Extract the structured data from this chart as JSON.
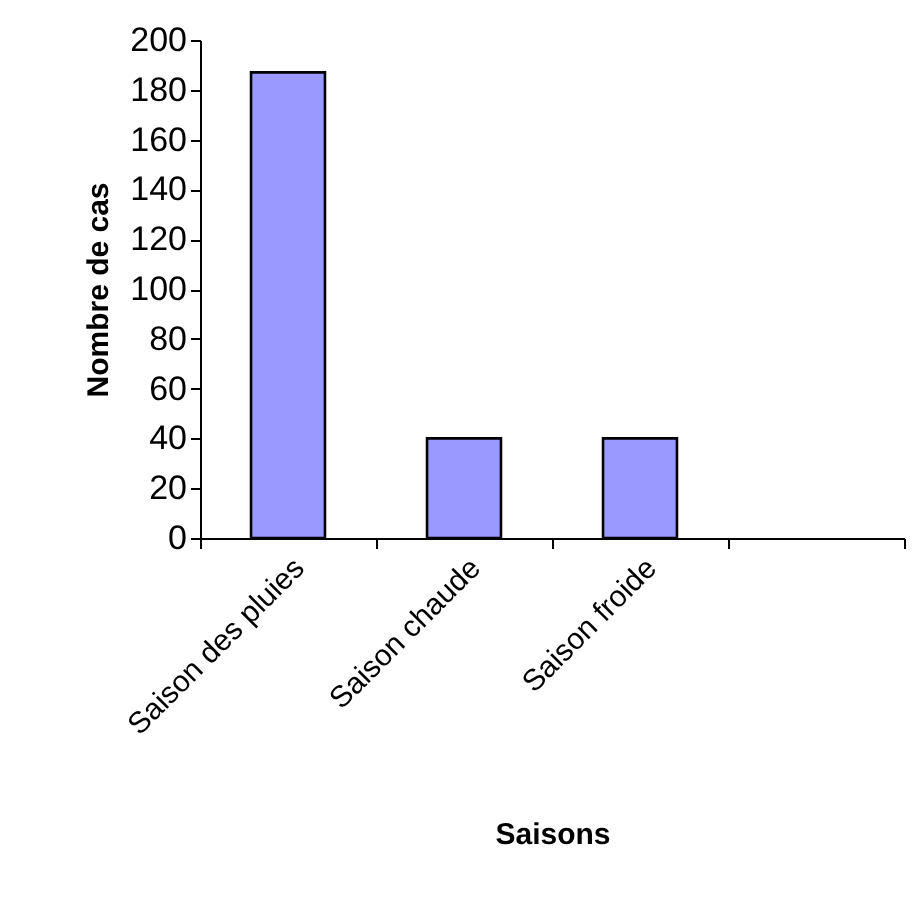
{
  "chart_data": {
    "type": "bar",
    "xlabel": "Saisons",
    "ylabel": "Nombre de cas",
    "categories": [
      "Saison des pluies",
      "Saison chaude",
      "Saison froide",
      null
    ],
    "values": [
      187,
      40,
      40,
      null
    ],
    "color": "#9999ff",
    "ylim": [
      0,
      200
    ],
    "yticks": [
      0,
      20,
      40,
      60,
      80,
      100,
      120,
      140,
      160,
      180,
      200
    ],
    "grid": false,
    "legend": false
  }
}
